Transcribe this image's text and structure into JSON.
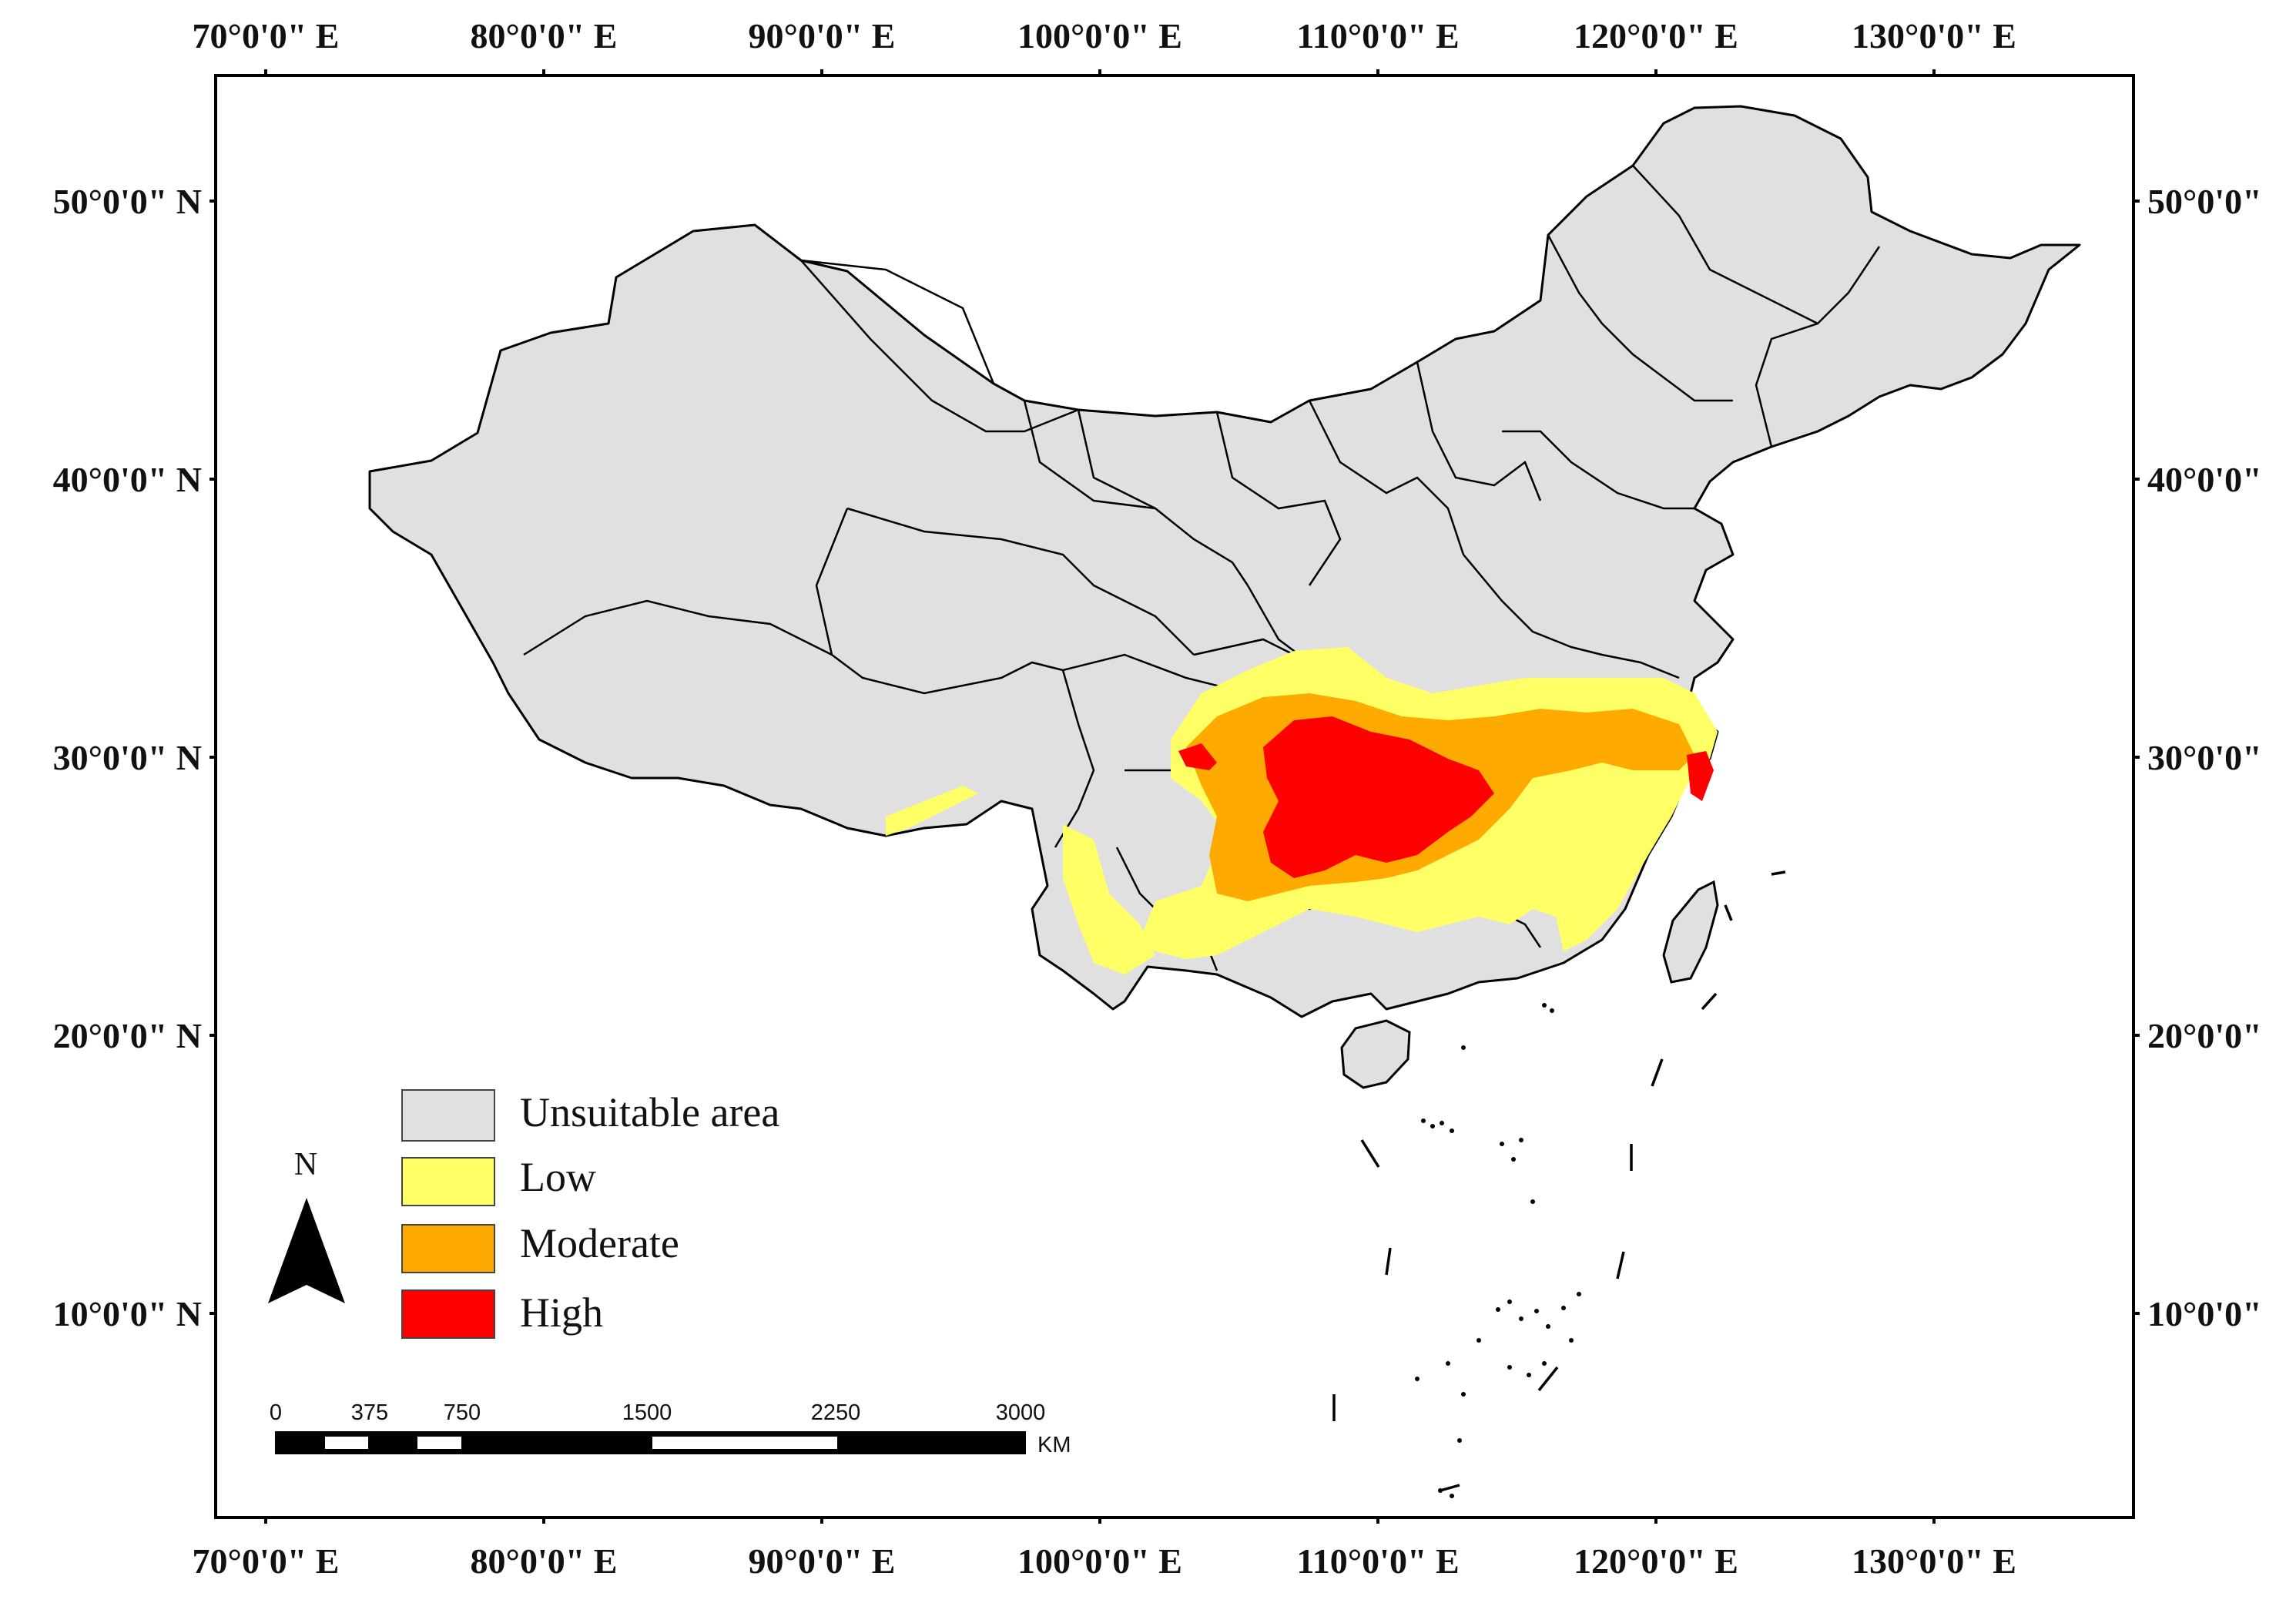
{
  "map": {
    "axes": {
      "top_labels": [
        "70°0'0\" E",
        "80°0'0\" E",
        "90°0'0\" E",
        "100°0'0\" E",
        "110°0'0\" E",
        "120°0'0\" E",
        "130°0'0\" E"
      ],
      "bottom_labels": [
        "70°0'0\" E",
        "80°0'0\" E",
        "90°0'0\" E",
        "100°0'0\" E",
        "110°0'0\" E",
        "120°0'0\" E",
        "130°0'0\" E"
      ],
      "left_labels": [
        "50°0'0\" N",
        "40°0'0\" N",
        "30°0'0\" N",
        "20°0'0\" N",
        "10°0'0\" N"
      ],
      "right_labels": [
        "50°0'0\"",
        "40°0'0\"",
        "30°0'0\"",
        "20°0'0\"",
        "10°0'0\""
      ]
    },
    "legend": {
      "items": [
        {
          "label": "Unsuitable area",
          "color": "#e0e0e0"
        },
        {
          "label": "Low",
          "color": "#ffff66"
        },
        {
          "label": "Moderate",
          "color": "#ffaa00"
        },
        {
          "label": "High",
          "color": "#ff0000"
        }
      ]
    },
    "north_arrow": {
      "label": "N"
    },
    "scale_bar": {
      "ticks": [
        "0",
        "375",
        "750",
        "1500",
        "2250",
        "3000"
      ],
      "unit": "KM"
    }
  }
}
